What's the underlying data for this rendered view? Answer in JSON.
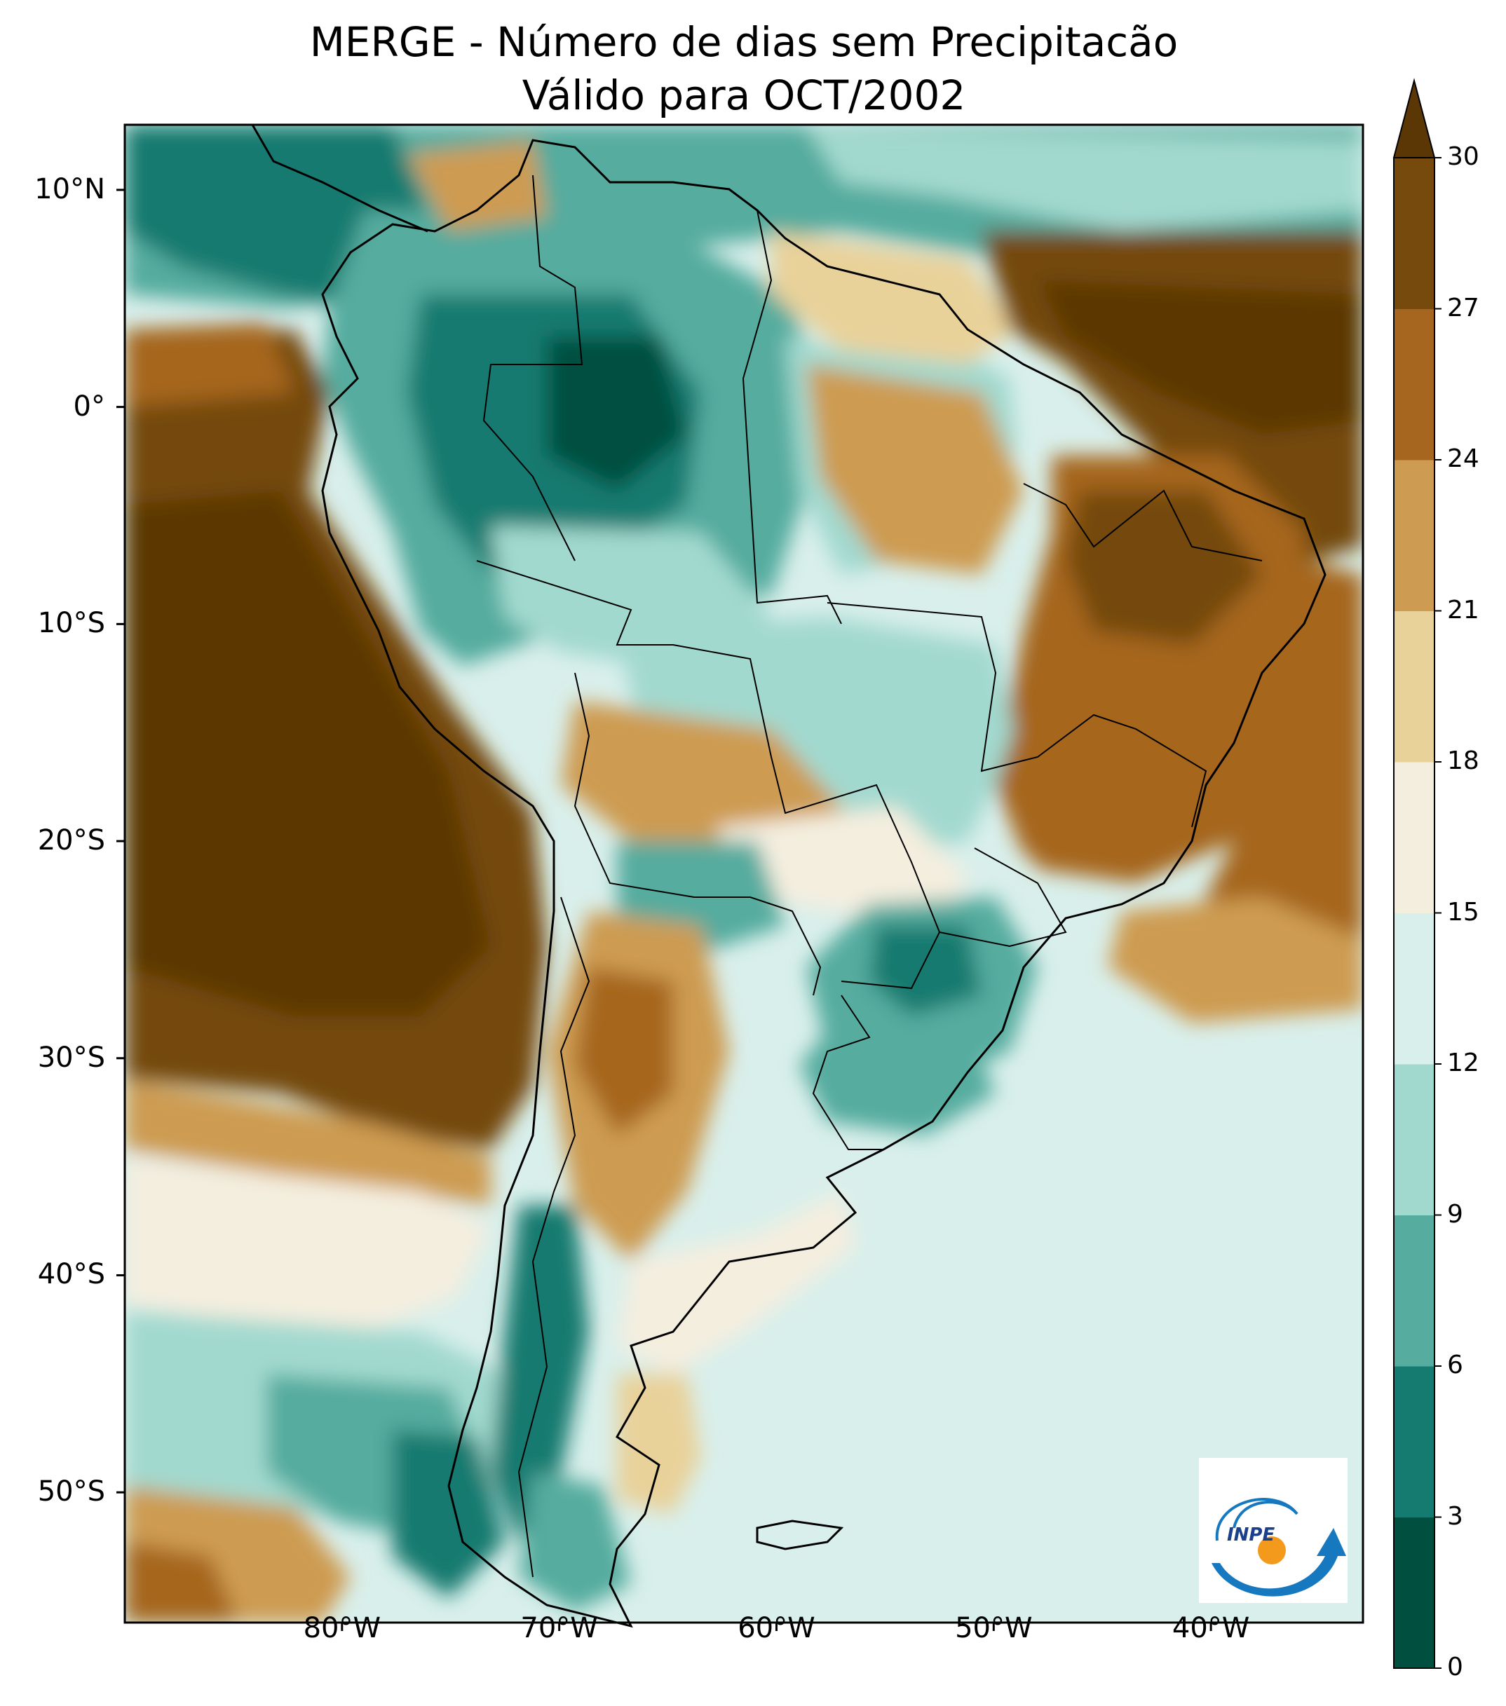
{
  "title": {
    "line1": "MERGE - Número de dias sem Precipitacão",
    "line2": "Válido para OCT/2002"
  },
  "map": {
    "lon_range": [
      -90,
      -33
    ],
    "lat_range": [
      -56,
      13
    ],
    "lat_ticks": [
      {
        "value": 10,
        "label": "10°N"
      },
      {
        "value": 0,
        "label": "0°"
      },
      {
        "value": -10,
        "label": "10°S"
      },
      {
        "value": -20,
        "label": "20°S"
      },
      {
        "value": -30,
        "label": "30°S"
      },
      {
        "value": -40,
        "label": "40°S"
      },
      {
        "value": -50,
        "label": "50°S"
      }
    ],
    "lon_ticks": [
      {
        "value": -80,
        "label": "80°W"
      },
      {
        "value": -70,
        "label": "70°W"
      },
      {
        "value": -60,
        "label": "60°W"
      },
      {
        "value": -50,
        "label": "50°W"
      },
      {
        "value": -40,
        "label": "40°W"
      }
    ]
  },
  "colorbar": {
    "levels": [
      0,
      3,
      6,
      9,
      12,
      15,
      18,
      21,
      24,
      27,
      30
    ],
    "labels": [
      "0",
      "3",
      "6",
      "9",
      "12",
      "15",
      "18",
      "21",
      "24",
      "27",
      "30"
    ],
    "colors": [
      "#01503f",
      "#157a70",
      "#55ac9f",
      "#a2d9cf",
      "#d9efeb",
      "#f4eedf",
      "#e9d19a",
      "#cd9b51",
      "#a6661f",
      "#754a0c"
    ],
    "extend_color": "#5c3706",
    "extend": "max"
  },
  "logo": {
    "text": "INPE"
  },
  "colors": {
    "ocean_pacific": "#754a0c",
    "ocean_south": "#d9efeb",
    "border": "#000000"
  }
}
